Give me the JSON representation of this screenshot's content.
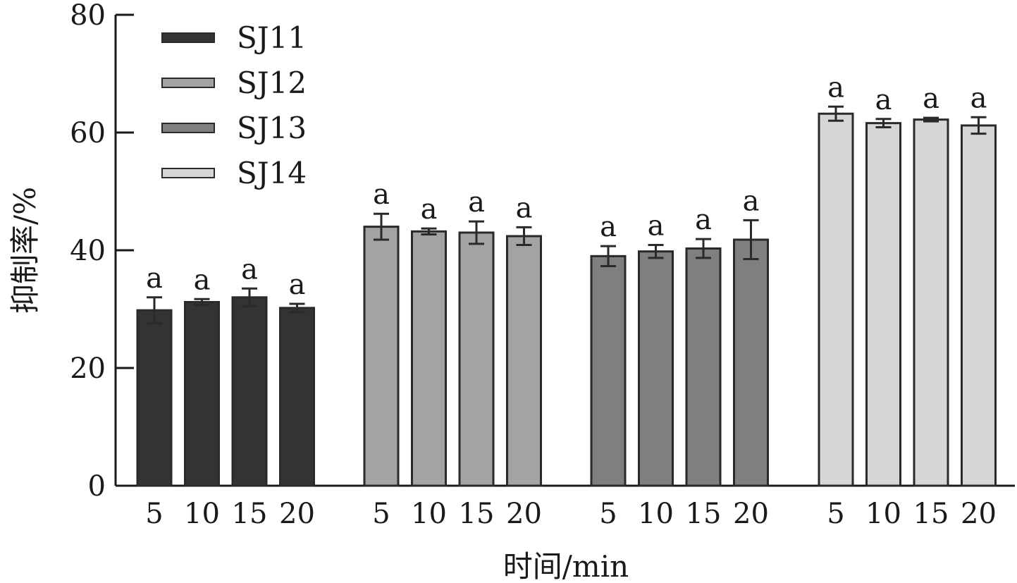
{
  "chart_data": {
    "type": "bar",
    "xlabel": "时间/min",
    "ylabel": "抑制率/%",
    "ylim": [
      0,
      80
    ],
    "yticks": [
      "0",
      "20",
      "40",
      "60",
      "80"
    ],
    "categories": [
      "5",
      "10",
      "15",
      "20"
    ],
    "legend_position": "top-left",
    "grid": false,
    "series": [
      {
        "name": "SJ11",
        "color": "#333333",
        "values": [
          29.8,
          31.2,
          32.0,
          30.2
        ],
        "errors": [
          2.2,
          0.5,
          1.5,
          0.7
        ],
        "significance": [
          "a",
          "a",
          "a",
          "a"
        ]
      },
      {
        "name": "SJ12",
        "color": "#a3a3a3",
        "values": [
          44.0,
          43.2,
          43.0,
          42.4
        ],
        "errors": [
          2.2,
          0.5,
          1.9,
          1.5
        ],
        "significance": [
          "a",
          "a",
          "a",
          "a"
        ]
      },
      {
        "name": "SJ13",
        "color": "#7f7f7f",
        "values": [
          39.0,
          39.8,
          40.3,
          41.8
        ],
        "errors": [
          1.7,
          1.1,
          1.6,
          3.3
        ],
        "significance": [
          "a",
          "a",
          "a",
          "a"
        ]
      },
      {
        "name": "SJ14",
        "color": "#d6d6d6",
        "values": [
          63.2,
          61.6,
          62.2,
          61.2
        ],
        "errors": [
          1.2,
          0.7,
          0.3,
          1.4
        ],
        "significance": [
          "a",
          "a",
          "a",
          "a"
        ]
      }
    ]
  }
}
